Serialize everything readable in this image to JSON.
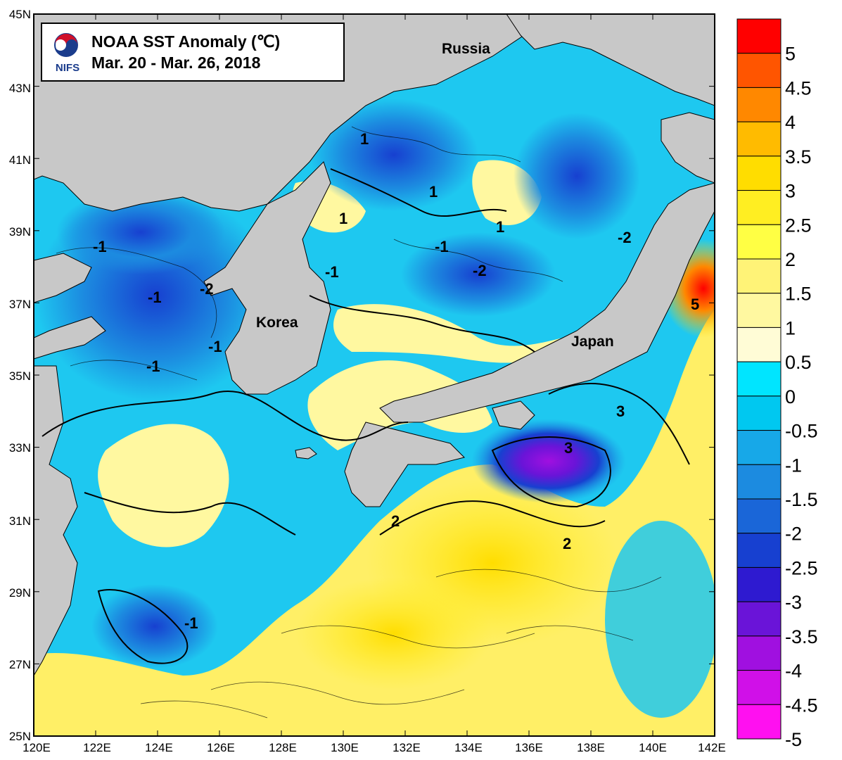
{
  "title": {
    "line1": "NOAA SST Anomaly (℃)",
    "line2": "Mar. 20 - Mar. 26,  2018",
    "logo_text": "NIFS",
    "logo_icon": "nifs-taeguk-logo-icon"
  },
  "axes": {
    "lat_labels": [
      "45N",
      "43N",
      "41N",
      "39N",
      "37N",
      "35N",
      "33N",
      "31N",
      "29N",
      "27N",
      "25N"
    ],
    "lon_labels": [
      "120E",
      "122E",
      "124E",
      "126E",
      "128E",
      "130E",
      "132E",
      "134E",
      "136E",
      "138E",
      "140E",
      "142E"
    ]
  },
  "place_labels": {
    "russia": "Russia",
    "korea": "Korea",
    "japan": "Japan"
  },
  "contour_labels": [
    "1",
    "-1",
    "1",
    "-1",
    "-1",
    "-2",
    "-1",
    "-1",
    "-2",
    "-1",
    "1",
    "1",
    "-2",
    "-1",
    "5",
    "3",
    "3",
    "2",
    "2",
    "-1"
  ],
  "colorbar": {
    "labels": [
      "5",
      "4.5",
      "4",
      "3.5",
      "3",
      "2.5",
      "2",
      "1.5",
      "1",
      "0.5",
      "0",
      "-0.5",
      "-1",
      "-1.5",
      "-2",
      "-2.5",
      "-3",
      "-3.5",
      "-4",
      "-4.5",
      "-5"
    ],
    "colors": [
      "#ff0000",
      "#ff5500",
      "#ff8800",
      "#ffbb00",
      "#ffdd00",
      "#ffee22",
      "#ffff44",
      "#fff377",
      "#fff8a0",
      "#fffcd6",
      "#00e5ff",
      "#00c8f0",
      "#17a8e8",
      "#1c8be0",
      "#1a66d8",
      "#1740d0",
      "#2e1ad0",
      "#6a14d8",
      "#a010e0",
      "#d010e8",
      "#ff10f0"
    ]
  },
  "colors": {
    "land": "#c8c8c8",
    "ocean_cool": "#1ec8f0",
    "ocean_warm": "#ffef66"
  }
}
